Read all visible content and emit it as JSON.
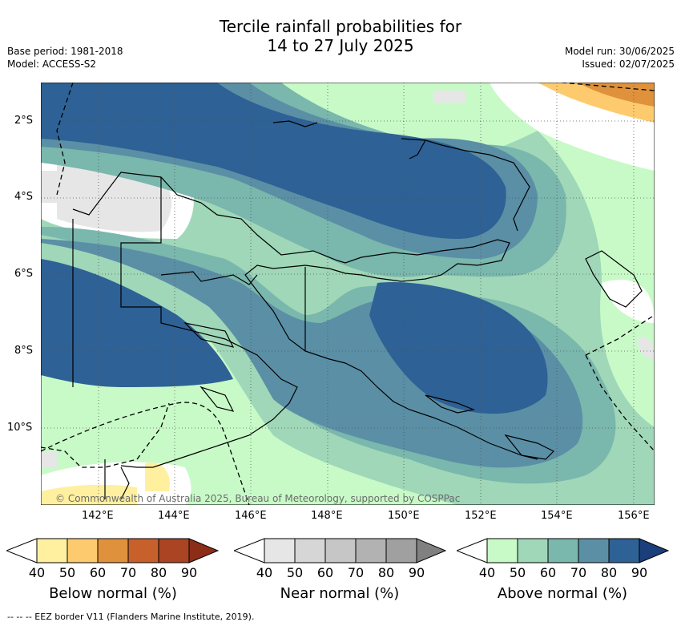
{
  "title_line1": "Tercile rainfall probabilities for",
  "title_line2": "14 to 27 July 2025",
  "base_period": "Base period: 1981-2018",
  "model": "Model: ACCESS-S2",
  "model_run": "Model run: 30/06/2025",
  "issued": "Issued: 02/07/2025",
  "copyright": "© Commonwealth of Australia 2025, Bureau of Meteorology, supported by COSPPac",
  "lat_labels": [
    "2°S",
    "4°S",
    "6°S",
    "8°S",
    "10°S"
  ],
  "lon_labels": [
    "142°E",
    "144°E",
    "146°E",
    "148°E",
    "150°E",
    "152°E",
    "154°E",
    "156°E"
  ],
  "colorbars": [
    {
      "title": "Below normal (%)",
      "ticks": [
        "40",
        "50",
        "60",
        "70",
        "80",
        "90"
      ],
      "colors": [
        "#fff0a0",
        "#fdcb6e",
        "#e0913c",
        "#c8602c",
        "#aa4423",
        "#8b2d17"
      ]
    },
    {
      "title": "Near normal (%)",
      "ticks": [
        "40",
        "50",
        "60",
        "70",
        "80",
        "90"
      ],
      "colors": [
        "#e6e6e6",
        "#d6d6d6",
        "#c6c6c6",
        "#b2b2b2",
        "#a0a0a0",
        "#808080"
      ]
    },
    {
      "title": "Above normal (%)",
      "ticks": [
        "40",
        "50",
        "60",
        "70",
        "80",
        "90"
      ],
      "colors": [
        "#c8fac8",
        "#9fd7b8",
        "#7ab7ad",
        "#5a8fa5",
        "#2e6195",
        "#1a3f7a"
      ]
    }
  ],
  "footer": "-- -- -- EEZ border V11 (Flanders Marine Institute, 2019)."
}
